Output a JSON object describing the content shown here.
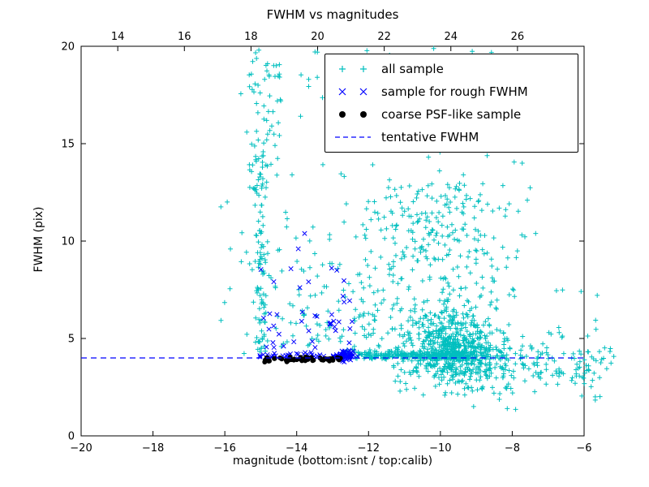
{
  "figure": {
    "title": "FWHM vs magnitudes",
    "xlabel": "magnitude (bottom:isnt / top:calib)",
    "ylabel": "FWHM (pix)"
  },
  "colors": {
    "all_sample": "#00bfbf",
    "rough_fwhm": "#0000ff",
    "psf_like": "#000000",
    "tentative_line": "#0000ff",
    "frame": "#000000",
    "background": "#ffffff"
  },
  "chart_data": {
    "type": "scatter",
    "title": "FWHM vs magnitudes",
    "xlabel": "magnitude (bottom:isnt / top:calib)",
    "ylabel": "FWHM (pix)",
    "grid": false,
    "legend_position": "upper right",
    "x_axis_bottom": {
      "name": "isnt magnitude",
      "min": -20,
      "max": -6,
      "ticks": [
        -20,
        -18,
        -16,
        -14,
        -12,
        -10,
        -8,
        -6
      ]
    },
    "x_axis_top": {
      "name": "calib magnitude",
      "min": 12.9,
      "max": 28.0,
      "ticks": [
        14,
        16,
        18,
        20,
        22,
        24,
        26
      ]
    },
    "y_axis": {
      "name": "FWHM (pix)",
      "min": 0,
      "max": 20,
      "ticks": [
        0,
        5,
        10,
        15,
        20
      ]
    },
    "tentative_fwhm_line": {
      "y": 4.0,
      "style": "dashed",
      "color": "#0000ff"
    },
    "seed": 42,
    "points_estimated_from_density": true,
    "series": [
      {
        "name": "all sample",
        "marker": "plus",
        "color": "#00bfbf",
        "clusters": [
          {
            "n": 95,
            "x": {
              "dist": "normal",
              "mu": -15.02,
              "sigma": 0.1
            },
            "y": {
              "dist": "uniform",
              "min": 4.2,
              "max": 14.5
            }
          },
          {
            "n": 45,
            "x": {
              "dist": "normal",
              "mu": -14.95,
              "sigma": 0.3
            },
            "y": {
              "dist": "uniform",
              "min": 13.5,
              "max": 19.9
            }
          },
          {
            "n": 14,
            "x": {
              "dist": "uniform",
              "min": -16.3,
              "max": -15.25
            },
            "y": {
              "dist": "uniform",
              "min": 4.0,
              "max": 14.0
            }
          },
          {
            "n": 130,
            "x": {
              "dist": "uniform",
              "min": -15.1,
              "max": -11.8
            },
            "y": {
              "dist": "halfnormal",
              "base": 4.3,
              "sign": 1,
              "sigma": 3.8,
              "clip_max": 19.8
            }
          },
          {
            "n": 240,
            "x": {
              "dist": "uniform",
              "min": -12.7,
              "max": -9.2
            },
            "y": {
              "dist": "normal",
              "mu": 4.15,
              "sigma": 0.1
            }
          },
          {
            "n": 520,
            "x": {
              "dist": "normal",
              "mu": -9.6,
              "sigma": 0.7,
              "clip_min": -11.6,
              "clip_max": -7.4
            },
            "y": {
              "dist": "halfnormal",
              "base": 3.9,
              "sign": 1,
              "sigma": 1.1,
              "clip_max": 9.5
            }
          },
          {
            "n": 210,
            "x": {
              "dist": "normal",
              "mu": -9.5,
              "sigma": 0.8,
              "clip_min": -11.6,
              "clip_max": -7.4
            },
            "y": {
              "dist": "halfnormal",
              "base": 3.9,
              "sign": -1,
              "sigma": 0.7,
              "clip_min": 1.8
            }
          },
          {
            "n": 250,
            "x": {
              "dist": "normal",
              "mu": -9.9,
              "sigma": 1.05,
              "clip_min": -12.2,
              "clip_max": -7.2
            },
            "y": {
              "dist": "uniform",
              "min": 5.5,
              "max": 13.0
            }
          },
          {
            "n": 85,
            "x": {
              "dist": "uniform",
              "min": -15.3,
              "max": -7.5
            },
            "y": {
              "dist": "uniform",
              "min": 13.0,
              "max": 19.9
            }
          },
          {
            "n": 90,
            "x": {
              "dist": "uniform",
              "min": -8.3,
              "max": -5.15
            },
            "y": {
              "dist": "normal",
              "mu": 3.9,
              "sigma": 0.55,
              "clip_min": 2.0,
              "clip_max": 6.0
            }
          },
          {
            "n": 22,
            "x": {
              "dist": "uniform",
              "min": -7.6,
              "max": -5.3
            },
            "y": {
              "dist": "uniform",
              "min": 1.7,
              "max": 3.4
            }
          },
          {
            "n": 14,
            "x": {
              "dist": "uniform",
              "min": -9.6,
              "max": -7.8
            },
            "y": {
              "dist": "uniform",
              "min": 1.3,
              "max": 2.6
            }
          },
          {
            "n": 60,
            "x": {
              "dist": "uniform",
              "min": -12.0,
              "max": -10.3
            },
            "y": {
              "dist": "uniform",
              "min": 4.5,
              "max": 12.0
            }
          },
          {
            "n": 10,
            "x": {
              "dist": "uniform",
              "min": -7.4,
              "max": -5.6
            },
            "y": {
              "dist": "uniform",
              "min": 5.0,
              "max": 7.5
            }
          }
        ]
      },
      {
        "name": "sample for rough FWHM",
        "marker": "x",
        "color": "#0000ff",
        "clusters": [
          {
            "n": 38,
            "x": {
              "dist": "uniform",
              "min": -15.05,
              "max": -12.5
            },
            "y": {
              "dist": "normal",
              "mu": 4.15,
              "sigma": 0.09
            }
          },
          {
            "n": 50,
            "x": {
              "dist": "normal",
              "mu": -12.62,
              "sigma": 0.13
            },
            "y": {
              "dist": "normal",
              "mu": 4.12,
              "sigma": 0.13
            }
          },
          {
            "n": 42,
            "x": {
              "dist": "uniform",
              "min": -15.0,
              "max": -12.45
            },
            "y": {
              "dist": "halfnormal",
              "base": 4.5,
              "sign": 1,
              "sigma": 2.3,
              "clip_max": 11.0
            }
          }
        ]
      },
      {
        "name": "coarse PSF-like sample",
        "marker": "dot",
        "color": "#000000",
        "clusters": [
          {
            "n": 52,
            "x": {
              "dist": "uniform",
              "min": -15.0,
              "max": -12.78
            },
            "y": {
              "dist": "normal",
              "mu": 3.93,
              "sigma": 0.055
            }
          }
        ]
      }
    ]
  },
  "legend": {
    "entries": [
      {
        "label": "all sample",
        "marker": "plus",
        "color": "#00bfbf"
      },
      {
        "label": "sample for rough FWHM",
        "marker": "x",
        "color": "#0000ff"
      },
      {
        "label": "coarse PSF-like sample",
        "marker": "dot",
        "color": "#000000"
      },
      {
        "label": "tentative FWHM",
        "marker": "dashed-line",
        "color": "#0000ff"
      }
    ]
  }
}
